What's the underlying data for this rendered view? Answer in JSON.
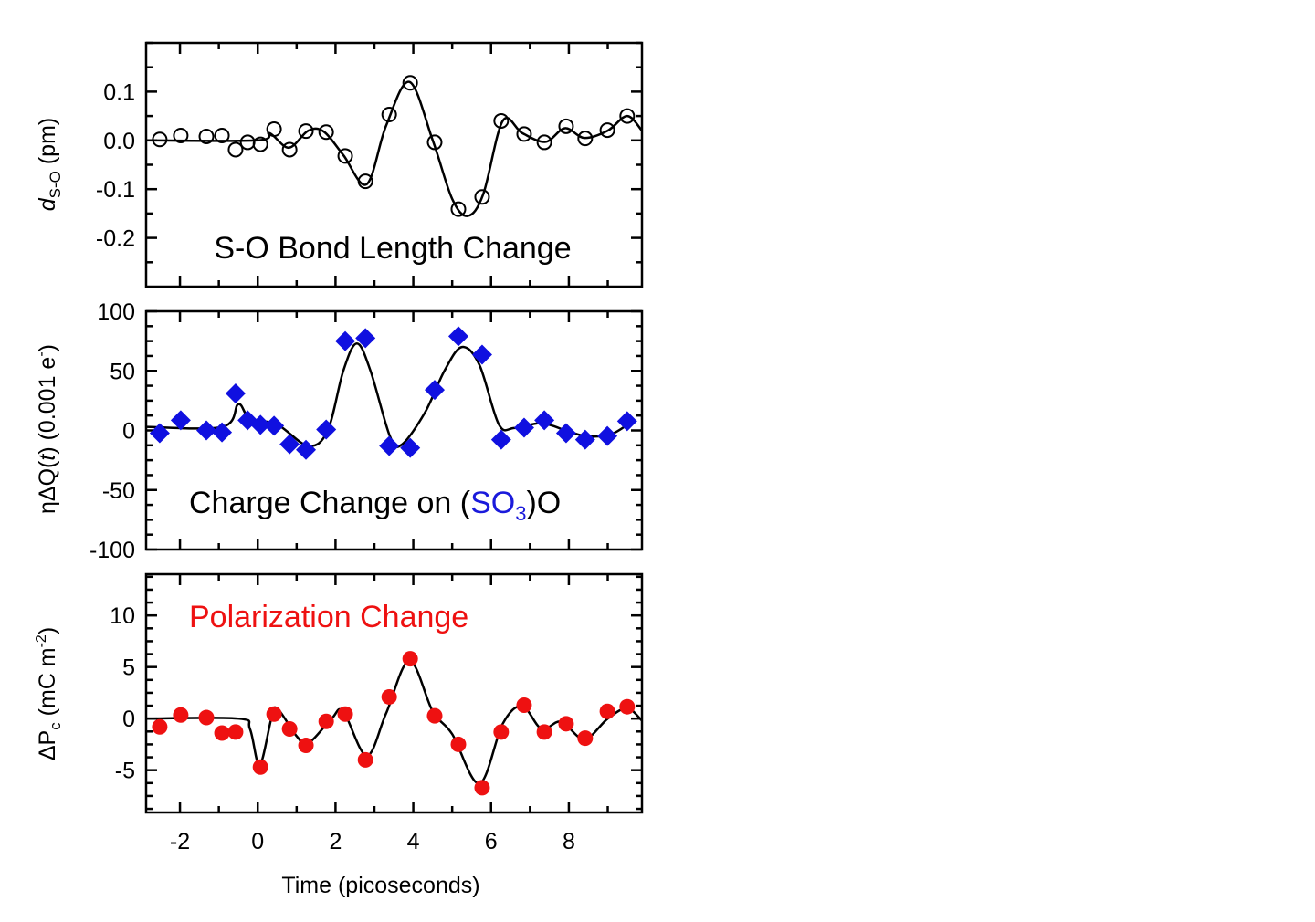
{
  "chart_data": [
    {
      "type": "scatter",
      "annotation": "S-O Bond Length Change",
      "annotation_color": "#000000",
      "ylabel": {
        "main": "d",
        "sub": "S-O",
        "unit": " (pm)"
      },
      "ylim": [
        -0.3,
        0.2
      ],
      "yticks": [
        0.1,
        0.0,
        -0.1,
        -0.2
      ],
      "ytick_labels": [
        "0.1",
        "0.0",
        "-0.1",
        "-0.2"
      ],
      "yminor_step": 0.05,
      "marker": "open-circle",
      "marker_color": "#000000",
      "points": {
        "x": [
          -2.52,
          -1.98,
          -1.32,
          -0.92,
          -0.57,
          -0.26,
          0.07,
          0.42,
          0.82,
          1.24,
          1.76,
          2.25,
          2.77,
          3.38,
          3.92,
          4.55,
          5.16,
          5.77,
          6.26,
          6.85,
          7.37,
          7.93,
          8.42,
          8.99,
          9.5
        ],
        "y": [
          0.002,
          0.01,
          0.008,
          0.01,
          -0.019,
          -0.004,
          -0.008,
          0.023,
          -0.019,
          0.019,
          0.017,
          -0.032,
          -0.084,
          0.053,
          0.118,
          -0.004,
          -0.141,
          -0.116,
          0.04,
          0.013,
          -0.004,
          0.029,
          0.004,
          0.021,
          0.05
        ]
      },
      "fit": {
        "x": [
          -2.87,
          0,
          0.3,
          0.8,
          1.3,
          1.7,
          2.2,
          2.8,
          3.3,
          3.9,
          4.5,
          5.0,
          5.4,
          5.8,
          6.3,
          6.8,
          7.4,
          7.9,
          8.4,
          9.0,
          9.5,
          9.88
        ],
        "y": [
          0,
          0,
          0.015,
          -0.015,
          0.02,
          0.018,
          -0.03,
          -0.09,
          0.03,
          0.12,
          0.0,
          -0.12,
          -0.155,
          -0.11,
          0.04,
          0.015,
          -0.003,
          0.025,
          0.005,
          0.02,
          0.05,
          0.02
        ]
      }
    },
    {
      "type": "scatter",
      "annotation": {
        "pre": "Charge Change on (",
        "mid": "SO",
        "sub": "3",
        "post": ")O"
      },
      "annotation_color": "#000000",
      "annotation_highlight_color": "#1a1adb",
      "ylabel": {
        "pre": "ηΔQ(",
        "italic": "t",
        "post": ") (0.001 e",
        "sup": "-",
        "end": ")"
      },
      "ylim": [
        -100,
        100
      ],
      "yticks": [
        100,
        50,
        0,
        -50,
        -100
      ],
      "ytick_labels": [
        "100",
        "50",
        "0",
        "-50",
        "-100"
      ],
      "yminor_step": 12.5,
      "marker": "filled-diamond",
      "marker_color": "#1010e0",
      "points": {
        "x": [
          -2.52,
          -1.98,
          -1.32,
          -0.92,
          -0.57,
          -0.26,
          0.07,
          0.42,
          0.82,
          1.24,
          1.76,
          2.25,
          2.77,
          3.38,
          3.92,
          4.55,
          5.16,
          5.77,
          6.26,
          6.85,
          7.37,
          7.93,
          8.42,
          8.99,
          9.5
        ],
        "y": [
          -2.3,
          8.5,
          0,
          -1.6,
          31,
          8.5,
          4.7,
          3.9,
          -11.6,
          -16.3,
          0.8,
          75,
          77.5,
          -13,
          -14.7,
          34,
          79,
          63.6,
          -7.8,
          2.3,
          8.5,
          -2.3,
          -7.8,
          -4.7,
          7.8
        ]
      },
      "fit": {
        "x": [
          -2.87,
          -0.9,
          -0.5,
          -0.2,
          0.5,
          1.3,
          1.8,
          2.2,
          2.55,
          2.9,
          3.4,
          3.7,
          4.3,
          4.8,
          5.25,
          5.7,
          6.2,
          6.6,
          7.3,
          8.0,
          8.5,
          9.1,
          9.6
        ],
        "y": [
          3,
          3,
          22,
          10,
          5,
          -13,
          0,
          50,
          73,
          50,
          -5,
          -12,
          15,
          50,
          70,
          55,
          5,
          2,
          6,
          -1,
          -5,
          -3,
          7
        ]
      }
    },
    {
      "type": "scatter",
      "annotation": "Polarization Change",
      "annotation_color": "#ee1111",
      "ylabel": {
        "pre": "ΔP",
        "sub": "c",
        "unit": " (mC m",
        "sup": "-2",
        "end": ")"
      },
      "ylim": [
        -9.1,
        14
      ],
      "yticks": [
        10,
        5,
        0,
        -5
      ],
      "ytick_labels": [
        "10",
        "5",
        "0",
        "-5"
      ],
      "yminor_step": 1.25,
      "marker": "filled-circle",
      "marker_color": "#ee1111",
      "points": {
        "x": [
          -2.52,
          -1.98,
          -1.32,
          -0.92,
          -0.57,
          0.07,
          0.42,
          0.82,
          1.24,
          1.76,
          2.25,
          2.77,
          3.38,
          3.92,
          4.55,
          5.16,
          5.77,
          6.26,
          6.85,
          7.37,
          7.93,
          8.42,
          8.99,
          9.5
        ],
        "y": [
          -0.8,
          0.35,
          0.1,
          -1.4,
          -1.3,
          -4.7,
          0.44,
          -1.0,
          -2.6,
          -0.27,
          0.44,
          -4.0,
          2.1,
          5.8,
          0.27,
          -2.5,
          -6.7,
          -1.3,
          1.3,
          -1.3,
          -0.5,
          -1.9,
          0.7,
          1.15
        ]
      },
      "fit": {
        "x": [
          -2.87,
          -0.5,
          -0.2,
          0.05,
          0.35,
          0.5,
          1.0,
          1.3,
          1.9,
          2.2,
          2.8,
          3.3,
          3.9,
          4.5,
          5.0,
          5.7,
          6.3,
          6.8,
          7.3,
          7.8,
          8.4,
          9.0,
          9.5,
          9.88
        ],
        "y": [
          0,
          0,
          -1,
          -4.5,
          0,
          1.0,
          -1.7,
          -2.4,
          0,
          0.7,
          -3.6,
          0.5,
          5.6,
          0.7,
          -1.5,
          -6.3,
          -0.5,
          1.2,
          -1.0,
          -0.3,
          -2.0,
          0,
          1.0,
          -0.2
        ]
      }
    }
  ],
  "x_axis": {
    "label": "Time (picoseconds)",
    "xlim": [
      -2.87,
      9.88
    ],
    "ticks": [
      -2,
      0,
      2,
      4,
      6,
      8
    ],
    "tick_labels": [
      "-2",
      "0",
      "2",
      "4",
      "6",
      "8"
    ],
    "minor_step": 1
  }
}
